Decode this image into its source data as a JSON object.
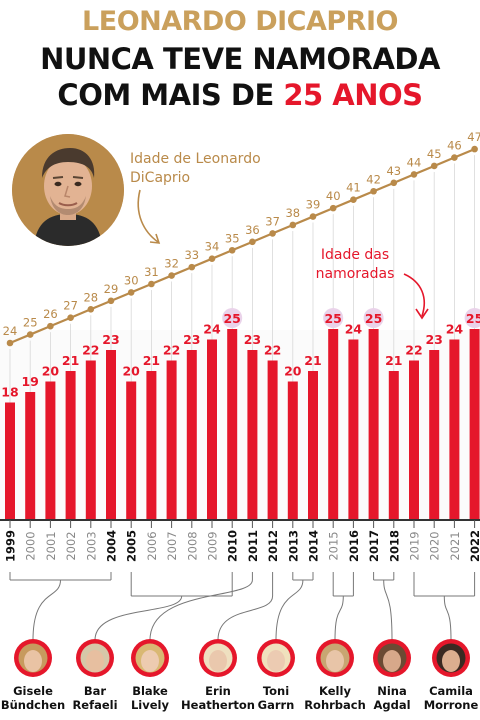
{
  "headline": {
    "line1": "LEONARDO DICAPRIO",
    "line2": "NUNCA TEVE NAMORADA",
    "line3_prefix": "COM MAIS DE ",
    "line3_highlight": "25 ANOS"
  },
  "annotations": {
    "leo_age": "Idade de Leonardo DiCaprio",
    "girlfriend_age": "Idade das namoradas"
  },
  "colors": {
    "gold": "#b98a4a",
    "red": "#e5172b",
    "max_highlight": "#ead3ea",
    "axis": "#333333"
  },
  "chart_data": {
    "type": "bar",
    "x": [
      "1999",
      "2000",
      "2001",
      "2002",
      "2003",
      "2004",
      "2005",
      "2006",
      "2007",
      "2008",
      "2009",
      "2010",
      "2011",
      "2012",
      "2013",
      "2014",
      "2015",
      "2016",
      "2017",
      "2018",
      "2019",
      "2020",
      "2021",
      "2022"
    ],
    "series": [
      {
        "name": "Idade das namoradas",
        "type": "bar",
        "values": [
          18,
          19,
          20,
          21,
          22,
          23,
          20,
          21,
          22,
          23,
          24,
          25,
          23,
          22,
          20,
          21,
          25,
          24,
          25,
          21,
          22,
          23,
          24,
          25
        ]
      },
      {
        "name": "Idade de Leonardo DiCaprio",
        "type": "line",
        "values": [
          24,
          25,
          26,
          27,
          28,
          29,
          30,
          31,
          32,
          33,
          34,
          35,
          36,
          37,
          38,
          39,
          40,
          41,
          42,
          43,
          44,
          45,
          46,
          47
        ]
      }
    ],
    "bold_years": [
      "1999",
      "2004",
      "2005",
      "2010",
      "2011",
      "2012",
      "2013",
      "2014",
      "2016",
      "2017",
      "2018",
      "2022"
    ],
    "highlighted_value": 25,
    "girlfriends": [
      {
        "name": "Gisele Bündchen",
        "years": [
          "1999",
          "2004"
        ],
        "avatar": "gisele-avatar",
        "skin": "#e9c3a4",
        "hair": "#c79a5e"
      },
      {
        "name": "Bar Refaeli",
        "years": [
          "2005",
          "2010"
        ],
        "avatar": "bar-avatar",
        "skin": "#e7bfa0",
        "hair": "#d6c7a8"
      },
      {
        "name": "Blake Lively",
        "years": [
          "2011"
        ],
        "avatar": "blake-avatar",
        "skin": "#edcbb0",
        "hair": "#d9b873"
      },
      {
        "name": "Erin Heatherton",
        "years": [
          "2012"
        ],
        "avatar": "erin-avatar",
        "skin": "#eac8ad",
        "hair": "#efe0c0"
      },
      {
        "name": "Toni Garrn",
        "years": [
          "2013",
          "2014"
        ],
        "avatar": "toni-avatar",
        "skin": "#eccbb2",
        "hair": "#f0e1bd"
      },
      {
        "name": "Kelly Rohrbach",
        "years": [
          "2015",
          "2016"
        ],
        "avatar": "kelly-avatar",
        "skin": "#e8c5a8",
        "hair": "#c8a672"
      },
      {
        "name": "Nina Agdal",
        "years": [
          "2017",
          "2018"
        ],
        "avatar": "nina-avatar",
        "skin": "#d7a88a",
        "hair": "#6b4a33"
      },
      {
        "name": "Camila Morrone",
        "years": [
          "2019",
          "2022"
        ],
        "avatar": "camila-avatar",
        "skin": "#dcae8f",
        "hair": "#3b2a22"
      }
    ]
  }
}
